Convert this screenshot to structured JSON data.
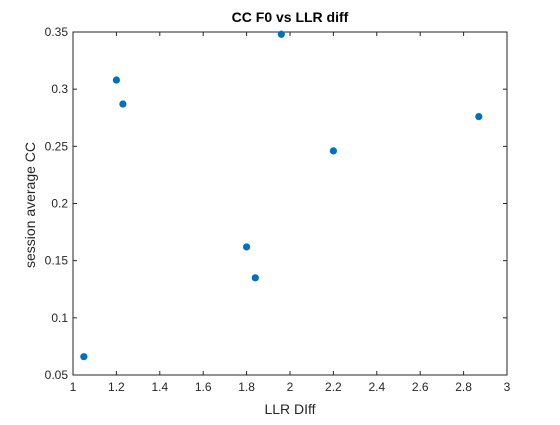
{
  "chart_data": {
    "type": "scatter",
    "title": "CC F0 vs LLR diff",
    "xlabel": "LLR DIff",
    "ylabel": "session average CC",
    "xlim": [
      1,
      3
    ],
    "ylim": [
      0.05,
      0.35
    ],
    "xticks": [
      "1",
      "1.2",
      "1.4",
      "1.6",
      "1.8",
      "2",
      "2.2",
      "2.4",
      "2.6",
      "2.8",
      "3"
    ],
    "yticks": [
      "0.05",
      "0.1",
      "0.15",
      "0.2",
      "0.25",
      "0.3",
      "0.35"
    ],
    "grid": false,
    "legend": "none",
    "marker_color": "#0072BD",
    "points": [
      {
        "x": 1.05,
        "y": 0.066
      },
      {
        "x": 1.2,
        "y": 0.308
      },
      {
        "x": 1.23,
        "y": 0.287
      },
      {
        "x": 1.8,
        "y": 0.162
      },
      {
        "x": 1.84,
        "y": 0.135
      },
      {
        "x": 1.96,
        "y": 0.348
      },
      {
        "x": 2.2,
        "y": 0.246
      },
      {
        "x": 2.87,
        "y": 0.276
      }
    ]
  }
}
